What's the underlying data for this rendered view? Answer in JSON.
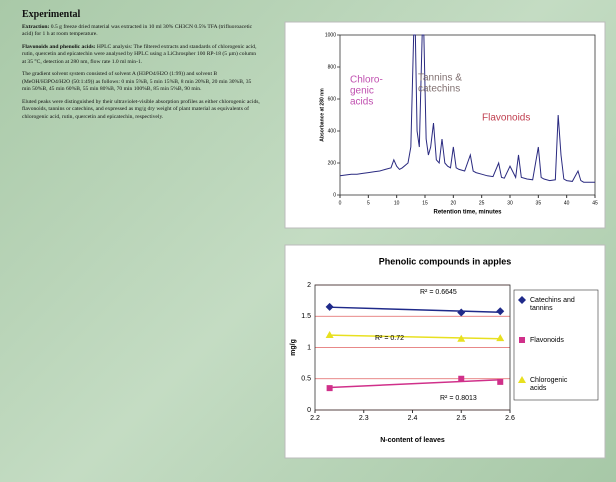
{
  "text": {
    "heading": "Experimental",
    "paragraphs": [
      {
        "lead": "Extraction:",
        "body": "0.5 g freeze dried material was extracted in 10 ml 30% CH3CN 0.5% TFA (trifluoroacetic acid) for 1 h at room temperature."
      },
      {
        "lead": "Flavonoids and phenolic acids:",
        "body": "HPLC analysis: The filtered extracts and standards of chlorogenic acid, rutin, quercetin and epicatechin were analysed by HPLC using a LiChrospher 100 RP-18 (5 µm) column at 35 °C, detection at 280 nm, flow rate 1.0 ml min-1."
      },
      {
        "lead": "",
        "body": "The gradient solvent system consisted of solvent A (H3PO4/H2O (1:99)) and solvent B (MeOH/H3PO4/H2O (50:1:49)) as follows: 0 min 5%B, 5 min 15%B, 8 min 20%B, 20 min 30%B, 35 min 50%B, 45 min 60%B, 55 min 80%B, 70 min 100%B, 85 min 5%B, 90 min."
      },
      {
        "lead": "",
        "body": "Eluted peaks were distinguished by their ultraviolet-visible absorption profiles as either chlorogenic acids, flavonoids, tannins or catechins, and expressed as mg/g dry weight of plant material as equivalents of chlorogenic acid, rutin, quercetin and epicatechin, respectively."
      }
    ]
  },
  "chart_data": [
    {
      "type": "line",
      "y_label": "Absorbance at 280 nm",
      "x_label": "Retention time, minutes",
      "xlim": [
        0,
        45
      ],
      "xticks": [
        0,
        5,
        10,
        15,
        20,
        25,
        30,
        35,
        40,
        45
      ],
      "ylim": [
        0,
        1000
      ],
      "yticks": [
        0,
        200,
        400,
        600,
        800,
        1000
      ],
      "annotations": [
        {
          "lines": [
            "Chloro-",
            "genic",
            "acids"
          ],
          "color": "#c050b0"
        },
        {
          "lines": [
            "Tannins &",
            "catechins"
          ],
          "color": "#807070"
        },
        {
          "lines": [
            "Flavonoids"
          ],
          "color": "#c04050"
        }
      ],
      "series": [
        {
          "color": "#2a2a80",
          "x": [
            0,
            1,
            2,
            3,
            4,
            5,
            6,
            7,
            8,
            9,
            9.5,
            10,
            10.5,
            11,
            12,
            12.5,
            13,
            13.3,
            13.6,
            14,
            14.5,
            14.8,
            15.2,
            15.6,
            16,
            16.5,
            17,
            17.5,
            18,
            18.5,
            19,
            19.5,
            20,
            20.5,
            21,
            22,
            23,
            23.5,
            24,
            25,
            26,
            27,
            28,
            28.5,
            29,
            30,
            31,
            31.5,
            32,
            33,
            34,
            35,
            35.5,
            36,
            37,
            38,
            38.5,
            39,
            39.5,
            40,
            41,
            42,
            42.5,
            43,
            44,
            45
          ],
          "values": [
            120,
            125,
            130,
            130,
            135,
            140,
            145,
            150,
            160,
            170,
            220,
            180,
            160,
            170,
            200,
            300,
            1000,
            1000,
            400,
            300,
            1000,
            1000,
            350,
            250,
            300,
            450,
            220,
            200,
            350,
            200,
            180,
            170,
            300,
            170,
            160,
            150,
            250,
            150,
            140,
            130,
            120,
            115,
            200,
            110,
            105,
            180,
            110,
            250,
            110,
            100,
            95,
            300,
            110,
            100,
            90,
            95,
            500,
            250,
            100,
            90,
            85,
            150,
            90,
            80,
            80,
            80
          ]
        }
      ]
    },
    {
      "type": "scatter",
      "title": "Phenolic compounds in apples",
      "y_label": "mg/g",
      "x_label": "N-content of leaves",
      "xlim": [
        2.2,
        2.6
      ],
      "xticks": [
        2.2,
        2.3,
        2.4,
        2.5,
        2.6
      ],
      "ylim": [
        0,
        2
      ],
      "yticks": [
        0,
        0.5,
        1,
        1.5,
        2
      ],
      "grid": true,
      "grid_color": "#e06060",
      "legend": "right",
      "annotations": [
        "R² = 0.6645",
        "R² = 0.72",
        "R² = 0.8013"
      ],
      "series": [
        {
          "name": "Catechins and tannins",
          "color": "#1f2a8a",
          "marker": "diamond",
          "x": [
            2.23,
            2.5,
            2.58
          ],
          "values": [
            1.65,
            1.56,
            1.58
          ]
        },
        {
          "name": "Flavonoids",
          "color": "#d0308a",
          "marker": "square",
          "x": [
            2.23,
            2.5,
            2.58
          ],
          "values": [
            0.35,
            0.5,
            0.45
          ]
        },
        {
          "name": "Chlorogenic acids",
          "color": "#e8e020",
          "marker": "triangle",
          "x": [
            2.23,
            2.5,
            2.58
          ],
          "values": [
            1.2,
            1.14,
            1.15
          ]
        }
      ]
    }
  ]
}
